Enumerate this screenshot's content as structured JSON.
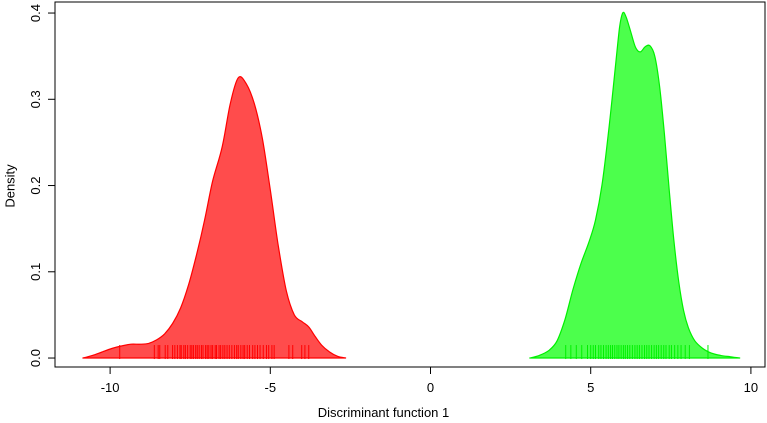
{
  "chart_data": {
    "type": "area",
    "subtype": "kernel-density-comparison-with-rug",
    "title": "",
    "xlabel": "Discriminant function 1",
    "ylabel": "Density",
    "xlim": [
      -11.72,
      10.44
    ],
    "ylim": [
      -0.0104,
      0.4128
    ],
    "grid": false,
    "legend_position": "none",
    "axis_color": "#000000",
    "background_color": "#ffffff",
    "xticks": {
      "values": [
        -10,
        -5,
        0,
        5,
        10
      ],
      "labels": [
        "-10",
        "-5",
        "0",
        "5",
        "10"
      ]
    },
    "yticks": {
      "values": [
        0.0,
        0.1,
        0.2,
        0.3,
        0.4
      ],
      "labels": [
        "0.0",
        "0.1",
        "0.2",
        "0.3",
        "0.4"
      ]
    },
    "series": [
      {
        "name": "group-1-red-density",
        "fill": "#FF4C4C",
        "stroke": "#FF0000",
        "points": [
          [
            -10.85,
            0
          ],
          [
            -10.55,
            0.003
          ],
          [
            -10.25,
            0.007
          ],
          [
            -9.95,
            0.011
          ],
          [
            -9.65,
            0.014
          ],
          [
            -9.35,
            0.016
          ],
          [
            -9.05,
            0.016
          ],
          [
            -8.8,
            0.017
          ],
          [
            -8.55,
            0.021
          ],
          [
            -8.3,
            0.028
          ],
          [
            -8.05,
            0.04
          ],
          [
            -7.8,
            0.058
          ],
          [
            -7.55,
            0.085
          ],
          [
            -7.3,
            0.12
          ],
          [
            -7.05,
            0.16
          ],
          [
            -6.8,
            0.205
          ],
          [
            -6.5,
            0.245
          ],
          [
            -6.25,
            0.295
          ],
          [
            -6.0,
            0.325
          ],
          [
            -5.75,
            0.318
          ],
          [
            -5.5,
            0.295
          ],
          [
            -5.25,
            0.255
          ],
          [
            -5.0,
            0.195
          ],
          [
            -4.75,
            0.13
          ],
          [
            -4.5,
            0.078
          ],
          [
            -4.25,
            0.05
          ],
          [
            -4.0,
            0.042
          ],
          [
            -3.8,
            0.036
          ],
          [
            -3.6,
            0.025
          ],
          [
            -3.4,
            0.015
          ],
          [
            -3.15,
            0.007
          ],
          [
            -2.9,
            0.002
          ],
          [
            -2.65,
            0
          ]
        ],
        "rug": [
          -9.7,
          -8.62,
          -8.5,
          -8.45,
          -8.28,
          -8.2,
          -8.05,
          -7.98,
          -7.9,
          -7.82,
          -7.78,
          -7.7,
          -7.65,
          -7.58,
          -7.5,
          -7.45,
          -7.4,
          -7.33,
          -7.28,
          -7.22,
          -7.15,
          -7.1,
          -7.02,
          -6.97,
          -6.92,
          -6.85,
          -6.8,
          -6.72,
          -6.68,
          -6.6,
          -6.55,
          -6.48,
          -6.42,
          -6.35,
          -6.28,
          -6.2,
          -6.12,
          -6.05,
          -6.0,
          -5.92,
          -5.85,
          -5.8,
          -5.72,
          -5.65,
          -5.55,
          -5.48,
          -5.4,
          -5.32,
          -5.22,
          -5.12,
          -5.05,
          -4.95,
          -4.88,
          -4.42,
          -4.3,
          -4.02,
          -3.92,
          -3.8
        ]
      },
      {
        "name": "group-2-green-density",
        "fill": "#4CFF4C",
        "stroke": "#00F000",
        "points": [
          [
            3.1,
            0
          ],
          [
            3.4,
            0.003
          ],
          [
            3.7,
            0.009
          ],
          [
            3.95,
            0.02
          ],
          [
            4.2,
            0.045
          ],
          [
            4.45,
            0.08
          ],
          [
            4.7,
            0.11
          ],
          [
            4.95,
            0.135
          ],
          [
            5.15,
            0.16
          ],
          [
            5.35,
            0.2
          ],
          [
            5.55,
            0.26
          ],
          [
            5.75,
            0.33
          ],
          [
            5.9,
            0.383
          ],
          [
            6.0,
            0.4
          ],
          [
            6.1,
            0.396
          ],
          [
            6.25,
            0.378
          ],
          [
            6.4,
            0.36
          ],
          [
            6.55,
            0.355
          ],
          [
            6.7,
            0.361
          ],
          [
            6.85,
            0.362
          ],
          [
            7.0,
            0.35
          ],
          [
            7.15,
            0.315
          ],
          [
            7.3,
            0.26
          ],
          [
            7.45,
            0.195
          ],
          [
            7.6,
            0.135
          ],
          [
            7.75,
            0.088
          ],
          [
            7.9,
            0.055
          ],
          [
            8.05,
            0.035
          ],
          [
            8.25,
            0.02
          ],
          [
            8.5,
            0.011
          ],
          [
            8.75,
            0.006
          ],
          [
            9.05,
            0.003
          ],
          [
            9.35,
            0.0015
          ],
          [
            9.65,
            0
          ]
        ],
        "rug": [
          4.22,
          4.38,
          4.55,
          4.72,
          4.9,
          5.0,
          5.08,
          5.15,
          5.25,
          5.32,
          5.4,
          5.48,
          5.55,
          5.62,
          5.68,
          5.75,
          5.82,
          5.88,
          5.95,
          6.02,
          6.08,
          6.15,
          6.22,
          6.3,
          6.38,
          6.45,
          6.52,
          6.6,
          6.68,
          6.75,
          6.82,
          6.9,
          6.98,
          7.05,
          7.12,
          7.2,
          7.28,
          7.35,
          7.45,
          7.52,
          7.62,
          7.72,
          7.82,
          7.95,
          8.08,
          8.66
        ]
      }
    ]
  }
}
